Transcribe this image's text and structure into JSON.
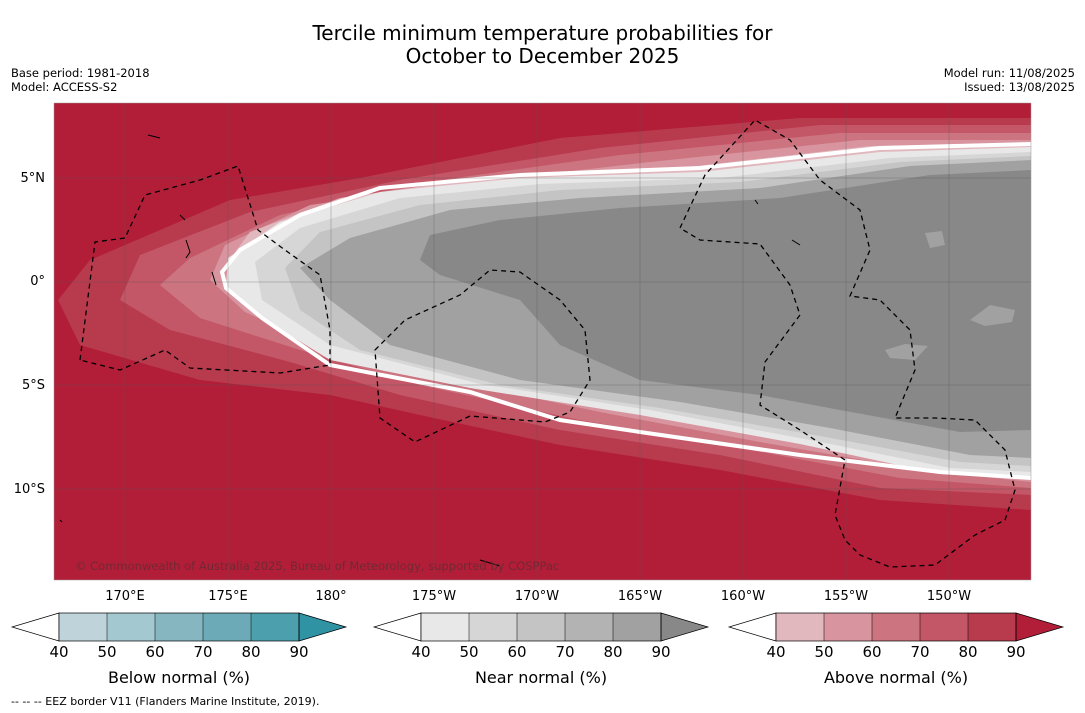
{
  "header": {
    "title_line1": "Tercile minimum temperature probabilities for",
    "title_line2": "October to December 2025",
    "base_period": "Base period: 1981-2018",
    "model": "Model: ACCESS-S2",
    "model_run": "Model run: 11/08/2025",
    "issued": "Issued: 13/08/2025"
  },
  "map": {
    "lat_labels": [
      "5°N",
      "0°",
      "5°S",
      "10°S"
    ],
    "lon_labels": [
      "170°E",
      "175°E",
      "180°",
      "175°W",
      "170°W",
      "165°W",
      "160°W",
      "155°W",
      "150°W"
    ],
    "copyright": "© Commonwealth of Australia 2025, Bureau of Meteorology, supported by COSPPac",
    "colors": {
      "above_90": "#b21e38",
      "near_90": "#888888",
      "boundary": "#ffffff"
    }
  },
  "colorbars": {
    "ticks": [
      "40",
      "50",
      "60",
      "70",
      "80",
      "90"
    ],
    "below": {
      "title": "Below normal (%)",
      "colors": [
        "#ffffff",
        "#bed3da",
        "#a4c8cf",
        "#86b7c1",
        "#6baab6",
        "#4ca0ae",
        "#2f93a3"
      ]
    },
    "near": {
      "title": "Near normal (%)",
      "colors": [
        "#ffffff",
        "#e8e8e8",
        "#d6d6d6",
        "#c4c4c4",
        "#b3b3b3",
        "#a1a1a1",
        "#888888"
      ]
    },
    "above": {
      "title": "Above normal (%)",
      "colors": [
        "#ffffff",
        "#e2b8bf",
        "#d8959f",
        "#cc7480",
        "#c35767",
        "#b83a4d",
        "#b21e38"
      ]
    }
  },
  "footer": {
    "eez_note": "--  --  -- EEZ border V11 (Flanders Marine Institute, 2019)."
  }
}
